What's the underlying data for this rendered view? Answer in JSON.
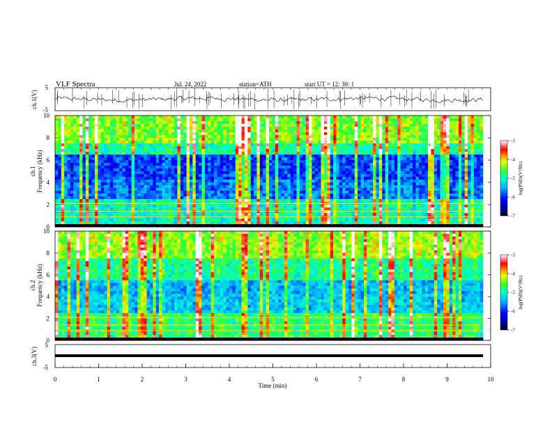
{
  "header": {
    "title": "VLF  Spectra",
    "date": "Jul.  24,  2022",
    "station": "station=ATH",
    "start": "start  UT  =   12: 30: 1"
  },
  "chart_data": [
    {
      "id": "ch1-wave",
      "type": "line",
      "ylabel": "ch.1(V)",
      "ylim": [
        -5,
        5
      ],
      "yticks": [
        "5",
        "-5"
      ],
      "xlim": [
        0,
        10
      ]
    },
    {
      "id": "ch1-spectrogram",
      "type": "heatmap",
      "ylabel_top": "ch.1",
      "ylabel": "Frequency  (kHz)",
      "ylim": [
        0,
        10
      ],
      "yticks": [
        "0",
        "2",
        "4",
        "6",
        "8",
        "10"
      ],
      "xlim": [
        0,
        10
      ],
      "colorbar": {
        "label": "log(PSD)(V²/Hz)",
        "range": [
          -7,
          -3
        ],
        "ticks": [
          "-3",
          "-4",
          "-5",
          "-6",
          "-7"
        ]
      }
    },
    {
      "id": "ch2-spectrogram",
      "type": "heatmap",
      "ylabel_top": "ch.2",
      "ylabel": "Frequency  (kHz)",
      "ylim": [
        0,
        10
      ],
      "yticks": [
        "0",
        "2",
        "4",
        "6",
        "8",
        "10"
      ],
      "xlim": [
        0,
        10
      ],
      "colorbar": {
        "label": "log(PSD)(V²/Hz)",
        "range": [
          -7,
          -3
        ],
        "ticks": [
          "-3",
          "-4",
          "-5",
          "-6",
          "-7"
        ]
      }
    },
    {
      "id": "ch3-wave",
      "type": "line",
      "ylabel": "ch.3(V)",
      "ylim": [
        -5,
        5
      ],
      "yticks": [
        "5",
        "-5"
      ],
      "xlim": [
        0,
        10
      ],
      "xlabel": "Time  (min)",
      "xticks": [
        "0",
        "1",
        "2",
        "3",
        "4",
        "5",
        "6",
        "7",
        "8",
        "9",
        "10"
      ]
    }
  ]
}
